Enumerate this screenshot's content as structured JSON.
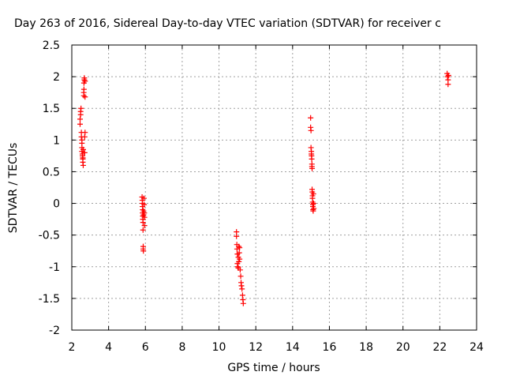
{
  "chart_data": {
    "type": "scatter",
    "title": "Day 263 of 2016, Sidereal Day-to-day VTEC variation (SDTVAR) for receiver c",
    "xlabel": "GPS time / hours",
    "ylabel": "SDTVAR / TECUs",
    "xlim": [
      2,
      24
    ],
    "ylim": [
      -2,
      2.5
    ],
    "xticks": [
      2,
      4,
      6,
      8,
      10,
      12,
      14,
      16,
      18,
      20,
      22,
      24
    ],
    "yticks": [
      -2,
      -1.5,
      -1,
      -0.5,
      0,
      0.5,
      1,
      1.5,
      2,
      2.5
    ],
    "xtick_labels": [
      "2",
      "4",
      "6",
      "8",
      "10",
      "12",
      "14",
      "16",
      "18",
      "20",
      "22",
      "24"
    ],
    "ytick_labels": [
      "-2",
      "-1.5",
      "-1",
      "-0.5",
      "0",
      "0.5",
      "1",
      "1.5",
      "2",
      "2.5"
    ],
    "grid": true,
    "marker": "+",
    "series": [
      {
        "color": "#ff0000",
        "points": [
          [
            2.45,
            1.25
          ],
          [
            2.45,
            1.33
          ],
          [
            2.48,
            1.4
          ],
          [
            2.48,
            1.45
          ],
          [
            2.5,
            1.5
          ],
          [
            2.52,
            1.12
          ],
          [
            2.52,
            1.05
          ],
          [
            2.55,
            1.0
          ],
          [
            2.55,
            0.95
          ],
          [
            2.55,
            0.88
          ],
          [
            2.55,
            0.82
          ],
          [
            2.58,
            0.78
          ],
          [
            2.58,
            0.75
          ],
          [
            2.6,
            0.72
          ],
          [
            2.6,
            0.7
          ],
          [
            2.6,
            0.65
          ],
          [
            2.62,
            0.6
          ],
          [
            2.62,
            0.85
          ],
          [
            2.65,
            1.7
          ],
          [
            2.65,
            1.75
          ],
          [
            2.66,
            1.8
          ],
          [
            2.66,
            1.9
          ],
          [
            2.68,
            1.95
          ],
          [
            2.68,
            1.98
          ],
          [
            2.7,
            0.8
          ],
          [
            2.7,
            1.05
          ],
          [
            2.72,
            1.12
          ],
          [
            2.72,
            1.68
          ],
          [
            2.72,
            1.93
          ],
          [
            5.82,
            0.1
          ],
          [
            5.83,
            0.05
          ],
          [
            5.84,
            0.0
          ],
          [
            5.84,
            -0.05
          ],
          [
            5.85,
            -0.1
          ],
          [
            5.85,
            -0.15
          ],
          [
            5.86,
            -0.2
          ],
          [
            5.86,
            -0.25
          ],
          [
            5.87,
            -0.3
          ],
          [
            5.87,
            -0.42
          ],
          [
            5.88,
            -0.68
          ],
          [
            5.88,
            -0.72
          ],
          [
            5.89,
            -0.75
          ],
          [
            5.9,
            -0.12
          ],
          [
            5.9,
            -0.18
          ],
          [
            5.92,
            0.08
          ],
          [
            5.93,
            -0.02
          ],
          [
            5.94,
            -0.15
          ],
          [
            5.95,
            -0.22
          ],
          [
            5.95,
            -0.35
          ],
          [
            10.95,
            -0.45
          ],
          [
            10.95,
            -0.52
          ],
          [
            10.97,
            -0.65
          ],
          [
            10.98,
            -0.72
          ],
          [
            11.0,
            -0.8
          ],
          [
            11.0,
            -0.95
          ],
          [
            11.02,
            -1.0
          ],
          [
            11.05,
            -0.85
          ],
          [
            11.05,
            -1.02
          ],
          [
            11.08,
            -0.92
          ],
          [
            11.08,
            -0.68
          ],
          [
            11.1,
            -0.78
          ],
          [
            11.12,
            -0.7
          ],
          [
            11.12,
            -0.88
          ],
          [
            11.15,
            -1.05
          ],
          [
            11.18,
            -1.15
          ],
          [
            11.2,
            -1.25
          ],
          [
            11.22,
            -1.3
          ],
          [
            11.25,
            -1.35
          ],
          [
            11.28,
            -1.45
          ],
          [
            11.3,
            -1.52
          ],
          [
            11.32,
            -1.58
          ],
          [
            14.98,
            1.35
          ],
          [
            14.98,
            1.2
          ],
          [
            15.0,
            1.15
          ],
          [
            15.0,
            0.88
          ],
          [
            15.02,
            0.82
          ],
          [
            15.02,
            0.78
          ],
          [
            15.03,
            0.75
          ],
          [
            15.04,
            0.7
          ],
          [
            15.05,
            0.62
          ],
          [
            15.05,
            0.58
          ],
          [
            15.06,
            0.55
          ],
          [
            15.06,
            0.22
          ],
          [
            15.07,
            0.18
          ],
          [
            15.08,
            0.12
          ],
          [
            15.08,
            0.08
          ],
          [
            15.09,
            0.02
          ],
          [
            15.1,
            -0.02
          ],
          [
            15.1,
            -0.05
          ],
          [
            15.11,
            -0.1
          ],
          [
            15.12,
            -0.12
          ],
          [
            15.13,
            0.15
          ],
          [
            15.14,
            0.0
          ],
          [
            15.15,
            -0.08
          ],
          [
            22.4,
            2.05
          ],
          [
            22.42,
            2.0
          ],
          [
            22.45,
            1.95
          ],
          [
            22.45,
            1.88
          ],
          [
            22.47,
            2.02
          ]
        ]
      }
    ]
  }
}
